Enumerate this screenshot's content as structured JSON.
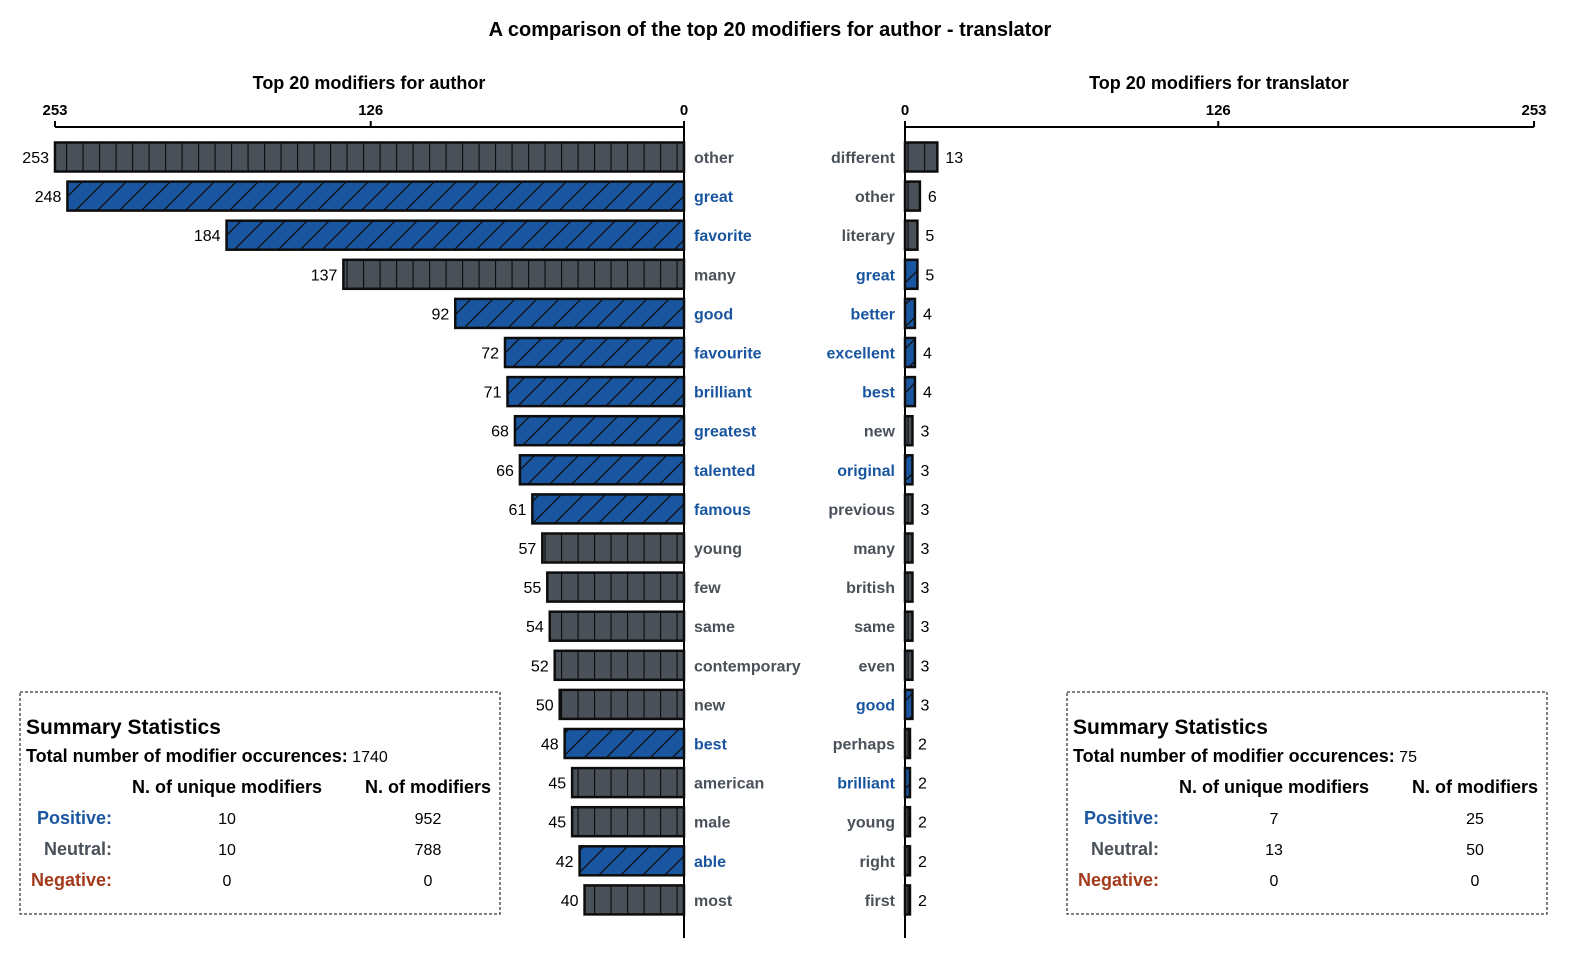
{
  "title": "A comparison of the top 20 modifiers for author - translator",
  "colors": {
    "positive": "#1a56a0",
    "neutral": "#4a5159",
    "negative": "#a33a1b",
    "bar_edge": "#0d0d0d"
  },
  "chart_data": [
    {
      "type": "bar",
      "orientation": "horizontal",
      "direction": "right-to-left",
      "subtitle": "Top 20 modifiers for author",
      "xlim": [
        0,
        253
      ],
      "xticks": [
        "253",
        "126",
        "0"
      ],
      "bars": [
        {
          "label": "other",
          "value": 253,
          "sentiment": "neutral"
        },
        {
          "label": "great",
          "value": 248,
          "sentiment": "positive"
        },
        {
          "label": "favorite",
          "value": 184,
          "sentiment": "positive"
        },
        {
          "label": "many",
          "value": 137,
          "sentiment": "neutral"
        },
        {
          "label": "good",
          "value": 92,
          "sentiment": "positive"
        },
        {
          "label": "favourite",
          "value": 72,
          "sentiment": "positive"
        },
        {
          "label": "brilliant",
          "value": 71,
          "sentiment": "positive"
        },
        {
          "label": "greatest",
          "value": 68,
          "sentiment": "positive"
        },
        {
          "label": "talented",
          "value": 66,
          "sentiment": "positive"
        },
        {
          "label": "famous",
          "value": 61,
          "sentiment": "positive"
        },
        {
          "label": "young",
          "value": 57,
          "sentiment": "neutral"
        },
        {
          "label": "few",
          "value": 55,
          "sentiment": "neutral"
        },
        {
          "label": "same",
          "value": 54,
          "sentiment": "neutral"
        },
        {
          "label": "contemporary",
          "value": 52,
          "sentiment": "neutral"
        },
        {
          "label": "new",
          "value": 50,
          "sentiment": "neutral"
        },
        {
          "label": "best",
          "value": 48,
          "sentiment": "positive"
        },
        {
          "label": "american",
          "value": 45,
          "sentiment": "neutral"
        },
        {
          "label": "male",
          "value": 45,
          "sentiment": "neutral"
        },
        {
          "label": "able",
          "value": 42,
          "sentiment": "positive"
        },
        {
          "label": "most",
          "value": 40,
          "sentiment": "neutral"
        }
      ],
      "summary": {
        "heading": "Summary Statistics",
        "total_label": "Total number of modifier occurences:",
        "total_value": "1740",
        "col_unique": "N. of unique modifiers",
        "col_count": "N. of modifiers",
        "rows": [
          {
            "label": "Positive:",
            "sentiment": "positive",
            "unique": "10",
            "count": "952"
          },
          {
            "label": "Neutral:",
            "sentiment": "neutral",
            "unique": "10",
            "count": "788"
          },
          {
            "label": "Negative:",
            "sentiment": "negative",
            "unique": "0",
            "count": "0"
          }
        ]
      }
    },
    {
      "type": "bar",
      "orientation": "horizontal",
      "direction": "left-to-right",
      "subtitle": "Top 20 modifiers for translator",
      "xlim": [
        0,
        253
      ],
      "xticks": [
        "0",
        "126",
        "253"
      ],
      "bars": [
        {
          "label": "different",
          "value": 13,
          "sentiment": "neutral"
        },
        {
          "label": "other",
          "value": 6,
          "sentiment": "neutral"
        },
        {
          "label": "literary",
          "value": 5,
          "sentiment": "neutral"
        },
        {
          "label": "great",
          "value": 5,
          "sentiment": "positive"
        },
        {
          "label": "better",
          "value": 4,
          "sentiment": "positive"
        },
        {
          "label": "excellent",
          "value": 4,
          "sentiment": "positive"
        },
        {
          "label": "best",
          "value": 4,
          "sentiment": "positive"
        },
        {
          "label": "new",
          "value": 3,
          "sentiment": "neutral"
        },
        {
          "label": "original",
          "value": 3,
          "sentiment": "positive"
        },
        {
          "label": "previous",
          "value": 3,
          "sentiment": "neutral"
        },
        {
          "label": "many",
          "value": 3,
          "sentiment": "neutral"
        },
        {
          "label": "british",
          "value": 3,
          "sentiment": "neutral"
        },
        {
          "label": "same",
          "value": 3,
          "sentiment": "neutral"
        },
        {
          "label": "even",
          "value": 3,
          "sentiment": "neutral"
        },
        {
          "label": "good",
          "value": 3,
          "sentiment": "positive"
        },
        {
          "label": "perhaps",
          "value": 2,
          "sentiment": "neutral"
        },
        {
          "label": "brilliant",
          "value": 2,
          "sentiment": "positive"
        },
        {
          "label": "young",
          "value": 2,
          "sentiment": "neutral"
        },
        {
          "label": "right",
          "value": 2,
          "sentiment": "neutral"
        },
        {
          "label": "first",
          "value": 2,
          "sentiment": "neutral"
        }
      ],
      "summary": {
        "heading": "Summary Statistics",
        "total_label": "Total number of modifier occurences:",
        "total_value": "75",
        "col_unique": "N. of unique modifiers",
        "col_count": "N. of modifiers",
        "rows": [
          {
            "label": "Positive:",
            "sentiment": "positive",
            "unique": "7",
            "count": "25"
          },
          {
            "label": "Neutral:",
            "sentiment": "neutral",
            "unique": "13",
            "count": "50"
          },
          {
            "label": "Negative:",
            "sentiment": "negative",
            "unique": "0",
            "count": "0"
          }
        ]
      }
    }
  ]
}
